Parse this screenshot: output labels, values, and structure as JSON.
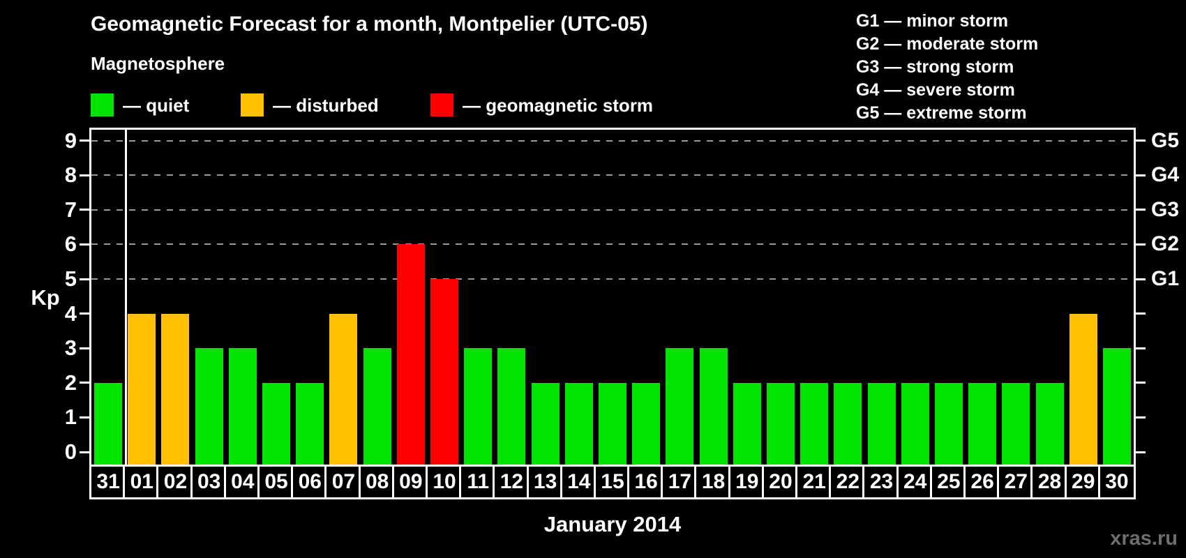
{
  "title": "Geomagnetic Forecast for a month, Montpelier (UTC-05)",
  "subtitle": "Magnetosphere",
  "legend": {
    "items": [
      {
        "name": "quiet",
        "label": "— quiet",
        "color": "#00e400"
      },
      {
        "name": "disturbed",
        "label": "— disturbed",
        "color": "#ffc000"
      },
      {
        "name": "storm",
        "label": "— geomagnetic storm",
        "color": "#ff0000"
      }
    ]
  },
  "g_scale_legend": [
    "G1 — minor storm",
    "G2 — moderate storm",
    "G3 — strong storm",
    "G4 — severe storm",
    "G5 — extreme storm"
  ],
  "watermark": "xras.ru",
  "colors": {
    "background": "#000000",
    "axis": "#ffffff",
    "grid": "#9a9a9a",
    "quiet": "#00e400",
    "disturbed": "#ffc000",
    "storm": "#ff0000",
    "watermark": "#6e6e6e"
  },
  "chart_data": {
    "type": "bar",
    "title": "Geomagnetic Forecast for a month, Montpelier (UTC-05)",
    "xlabel": "January 2014",
    "ylabel": "Kp",
    "ylim": [
      0,
      9
    ],
    "yticks": [
      0,
      1,
      2,
      3,
      4,
      5,
      6,
      7,
      8,
      9
    ],
    "grid": "horizontal dashed lines at Kp 5,6,7,8,9",
    "legend_position": "top-left",
    "categories": [
      "31",
      "01",
      "02",
      "03",
      "04",
      "05",
      "06",
      "07",
      "08",
      "09",
      "10",
      "11",
      "12",
      "13",
      "14",
      "15",
      "16",
      "17",
      "18",
      "19",
      "20",
      "21",
      "22",
      "23",
      "24",
      "25",
      "26",
      "27",
      "28",
      "29",
      "30"
    ],
    "series": [
      {
        "name": "Kp forecast",
        "values": [
          2,
          4,
          4,
          3,
          3,
          2,
          2,
          4,
          3,
          6,
          5,
          3,
          3,
          2,
          2,
          2,
          2,
          3,
          3,
          2,
          2,
          2,
          2,
          2,
          2,
          2,
          2,
          2,
          2,
          4,
          3
        ]
      }
    ],
    "statuses": [
      "quiet",
      "disturbed",
      "disturbed",
      "quiet",
      "quiet",
      "quiet",
      "quiet",
      "disturbed",
      "quiet",
      "storm",
      "storm",
      "quiet",
      "quiet",
      "quiet",
      "quiet",
      "quiet",
      "quiet",
      "quiet",
      "quiet",
      "quiet",
      "quiet",
      "quiet",
      "quiet",
      "quiet",
      "quiet",
      "quiet",
      "quiet",
      "quiet",
      "quiet",
      "disturbed",
      "quiet"
    ],
    "right_axis": {
      "labels": [
        "G1",
        "G2",
        "G3",
        "G4",
        "G5"
      ],
      "kp": [
        5,
        6,
        7,
        8,
        9
      ]
    }
  }
}
